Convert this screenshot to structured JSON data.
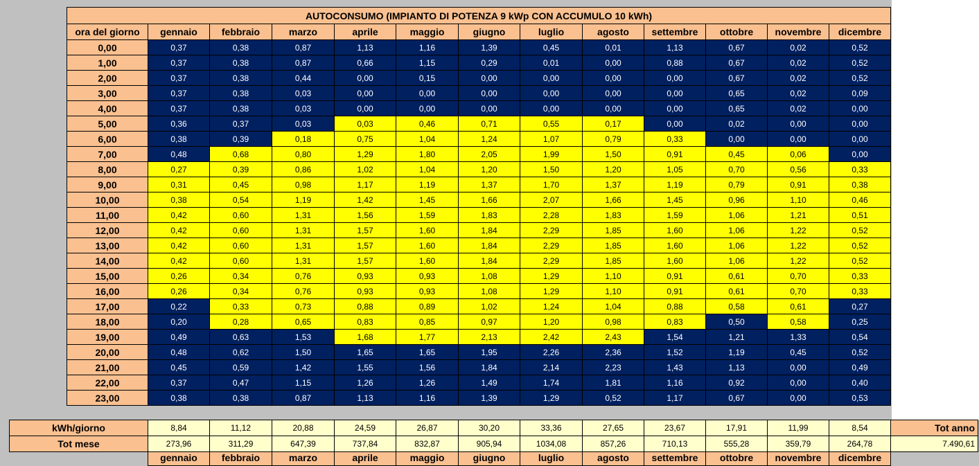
{
  "title": "AUTOCONSUMO (IMPIANTO DI POTENZA 9 kWp CON ACCUMULO 10 kWh)",
  "hour_header": "ora del giorno",
  "months": [
    "gennaio",
    "febbraio",
    "marzo",
    "aprile",
    "maggio",
    "giugno",
    "luglio",
    "agosto",
    "settembre",
    "ottobre",
    "novembre",
    "dicembre"
  ],
  "hours": [
    "0,00",
    "1,00",
    "2,00",
    "3,00",
    "4,00",
    "5,00",
    "6,00",
    "7,00",
    "8,00",
    "9,00",
    "10,00",
    "11,00",
    "12,00",
    "13,00",
    "14,00",
    "15,00",
    "16,00",
    "17,00",
    "18,00",
    "19,00",
    "20,00",
    "21,00",
    "22,00",
    "23,00"
  ],
  "values": [
    [
      "0,37",
      "0,38",
      "0,87",
      "1,13",
      "1,16",
      "1,39",
      "0,45",
      "0,01",
      "1,13",
      "0,67",
      "0,02",
      "0,52"
    ],
    [
      "0,37",
      "0,38",
      "0,87",
      "0,66",
      "1,15",
      "0,29",
      "0,01",
      "0,00",
      "0,88",
      "0,67",
      "0,02",
      "0,52"
    ],
    [
      "0,37",
      "0,38",
      "0,44",
      "0,00",
      "0,15",
      "0,00",
      "0,00",
      "0,00",
      "0,00",
      "0,67",
      "0,02",
      "0,52"
    ],
    [
      "0,37",
      "0,38",
      "0,03",
      "0,00",
      "0,00",
      "0,00",
      "0,00",
      "0,00",
      "0,00",
      "0,65",
      "0,02",
      "0,09"
    ],
    [
      "0,37",
      "0,38",
      "0,03",
      "0,00",
      "0,00",
      "0,00",
      "0,00",
      "0,00",
      "0,00",
      "0,65",
      "0,02",
      "0,00"
    ],
    [
      "0,36",
      "0,37",
      "0,03",
      "0,03",
      "0,46",
      "0,71",
      "0,55",
      "0,17",
      "0,00",
      "0,02",
      "0,00",
      "0,00"
    ],
    [
      "0,38",
      "0,39",
      "0,18",
      "0,75",
      "1,04",
      "1,24",
      "1,07",
      "0,79",
      "0,33",
      "0,00",
      "0,00",
      "0,00"
    ],
    [
      "0,48",
      "0,68",
      "0,80",
      "1,29",
      "1,80",
      "2,05",
      "1,99",
      "1,50",
      "0,91",
      "0,45",
      "0,06",
      "0,00"
    ],
    [
      "0,27",
      "0,39",
      "0,86",
      "1,02",
      "1,04",
      "1,20",
      "1,50",
      "1,20",
      "1,05",
      "0,70",
      "0,56",
      "0,33"
    ],
    [
      "0,31",
      "0,45",
      "0,98",
      "1,17",
      "1,19",
      "1,37",
      "1,70",
      "1,37",
      "1,19",
      "0,79",
      "0,91",
      "0,38"
    ],
    [
      "0,38",
      "0,54",
      "1,19",
      "1,42",
      "1,45",
      "1,66",
      "2,07",
      "1,66",
      "1,45",
      "0,96",
      "1,10",
      "0,46"
    ],
    [
      "0,42",
      "0,60",
      "1,31",
      "1,56",
      "1,59",
      "1,83",
      "2,28",
      "1,83",
      "1,59",
      "1,06",
      "1,21",
      "0,51"
    ],
    [
      "0,42",
      "0,60",
      "1,31",
      "1,57",
      "1,60",
      "1,84",
      "2,29",
      "1,85",
      "1,60",
      "1,06",
      "1,22",
      "0,52"
    ],
    [
      "0,42",
      "0,60",
      "1,31",
      "1,57",
      "1,60",
      "1,84",
      "2,29",
      "1,85",
      "1,60",
      "1,06",
      "1,22",
      "0,52"
    ],
    [
      "0,42",
      "0,60",
      "1,31",
      "1,57",
      "1,60",
      "1,84",
      "2,29",
      "1,85",
      "1,60",
      "1,06",
      "1,22",
      "0,52"
    ],
    [
      "0,26",
      "0,34",
      "0,76",
      "0,93",
      "0,93",
      "1,08",
      "1,29",
      "1,10",
      "0,91",
      "0,61",
      "0,70",
      "0,33"
    ],
    [
      "0,26",
      "0,34",
      "0,76",
      "0,93",
      "0,93",
      "1,08",
      "1,29",
      "1,10",
      "0,91",
      "0,61",
      "0,70",
      "0,33"
    ],
    [
      "0,22",
      "0,33",
      "0,73",
      "0,88",
      "0,89",
      "1,02",
      "1,24",
      "1,04",
      "0,88",
      "0,58",
      "0,61",
      "0,27"
    ],
    [
      "0,20",
      "0,28",
      "0,65",
      "0,83",
      "0,85",
      "0,97",
      "1,20",
      "0,98",
      "0,83",
      "0,50",
      "0,58",
      "0,25"
    ],
    [
      "0,49",
      "0,63",
      "1,53",
      "1,68",
      "1,77",
      "2,13",
      "2,42",
      "2,43",
      "1,54",
      "1,21",
      "1,33",
      "0,54"
    ],
    [
      "0,48",
      "0,62",
      "1,50",
      "1,65",
      "1,65",
      "1,95",
      "2,26",
      "2,36",
      "1,52",
      "1,19",
      "0,45",
      "0,52"
    ],
    [
      "0,45",
      "0,59",
      "1,42",
      "1,55",
      "1,56",
      "1,84",
      "2,14",
      "2,23",
      "1,43",
      "1,13",
      "0,00",
      "0,49"
    ],
    [
      "0,37",
      "0,47",
      "1,15",
      "1,26",
      "1,26",
      "1,49",
      "1,74",
      "1,81",
      "1,16",
      "0,92",
      "0,00",
      "0,40"
    ],
    [
      "0,38",
      "0,38",
      "0,87",
      "1,13",
      "1,16",
      "1,39",
      "1,29",
      "0,52",
      "1,17",
      "0,67",
      "0,00",
      "0,53"
    ]
  ],
  "highlight": [
    [
      0,
      0,
      0,
      0,
      0,
      0,
      0,
      0,
      0,
      0,
      0,
      0
    ],
    [
      0,
      0,
      0,
      0,
      0,
      0,
      0,
      0,
      0,
      0,
      0,
      0
    ],
    [
      0,
      0,
      0,
      0,
      0,
      0,
      0,
      0,
      0,
      0,
      0,
      0
    ],
    [
      0,
      0,
      0,
      0,
      0,
      0,
      0,
      0,
      0,
      0,
      0,
      0
    ],
    [
      0,
      0,
      0,
      0,
      0,
      0,
      0,
      0,
      0,
      0,
      0,
      0
    ],
    [
      0,
      0,
      0,
      1,
      1,
      1,
      1,
      1,
      0,
      0,
      0,
      0
    ],
    [
      0,
      0,
      1,
      1,
      1,
      1,
      1,
      1,
      1,
      0,
      0,
      0
    ],
    [
      0,
      1,
      1,
      1,
      1,
      1,
      1,
      1,
      1,
      1,
      1,
      0
    ],
    [
      1,
      1,
      1,
      1,
      1,
      1,
      1,
      1,
      1,
      1,
      1,
      1
    ],
    [
      1,
      1,
      1,
      1,
      1,
      1,
      1,
      1,
      1,
      1,
      1,
      1
    ],
    [
      1,
      1,
      1,
      1,
      1,
      1,
      1,
      1,
      1,
      1,
      1,
      1
    ],
    [
      1,
      1,
      1,
      1,
      1,
      1,
      1,
      1,
      1,
      1,
      1,
      1
    ],
    [
      1,
      1,
      1,
      1,
      1,
      1,
      1,
      1,
      1,
      1,
      1,
      1
    ],
    [
      1,
      1,
      1,
      1,
      1,
      1,
      1,
      1,
      1,
      1,
      1,
      1
    ],
    [
      1,
      1,
      1,
      1,
      1,
      1,
      1,
      1,
      1,
      1,
      1,
      1
    ],
    [
      1,
      1,
      1,
      1,
      1,
      1,
      1,
      1,
      1,
      1,
      1,
      1
    ],
    [
      1,
      1,
      1,
      1,
      1,
      1,
      1,
      1,
      1,
      1,
      1,
      1
    ],
    [
      0,
      1,
      1,
      1,
      1,
      1,
      1,
      1,
      1,
      1,
      1,
      0
    ],
    [
      0,
      1,
      1,
      1,
      1,
      1,
      1,
      1,
      1,
      0,
      1,
      0
    ],
    [
      0,
      0,
      0,
      1,
      1,
      1,
      1,
      1,
      0,
      0,
      0,
      0
    ],
    [
      0,
      0,
      0,
      0,
      0,
      0,
      0,
      0,
      0,
      0,
      0,
      0
    ],
    [
      0,
      0,
      0,
      0,
      0,
      0,
      0,
      0,
      0,
      0,
      0,
      0
    ],
    [
      0,
      0,
      0,
      0,
      0,
      0,
      0,
      0,
      0,
      0,
      0,
      0
    ],
    [
      0,
      0,
      0,
      0,
      0,
      0,
      0,
      0,
      0,
      0,
      0,
      0
    ]
  ],
  "colors": {
    "header": "#fac090",
    "night": "#002060",
    "day": "#ffff00",
    "total": "#ffffcc"
  },
  "daily_label": "kWh/giorno",
  "daily": [
    "8,84",
    "11,12",
    "20,88",
    "24,59",
    "26,87",
    "30,20",
    "33,36",
    "27,65",
    "23,67",
    "17,91",
    "11,99",
    "8,54"
  ],
  "monthly_label": "Tot mese",
  "monthly": [
    "273,96",
    "311,29",
    "647,39",
    "737,84",
    "832,87",
    "905,94",
    "1034,08",
    "857,26",
    "710,13",
    "555,28",
    "359,79",
    "264,78"
  ],
  "year_label": "Tot anno",
  "year_total": "7.490,61"
}
